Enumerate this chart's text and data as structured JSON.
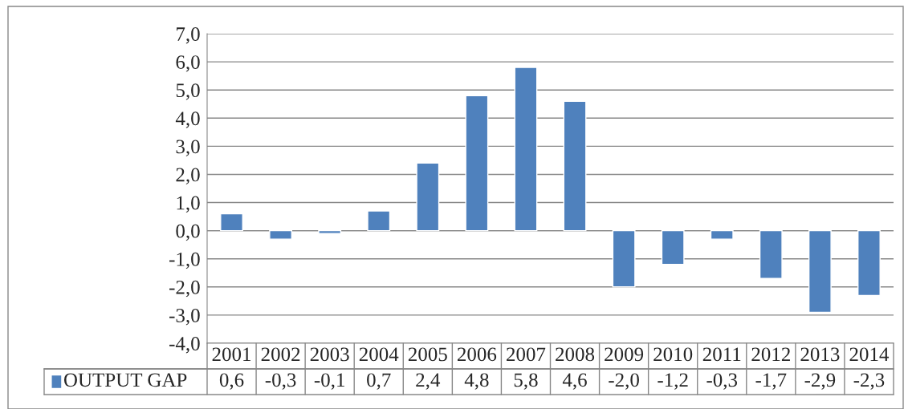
{
  "chart_data": {
    "type": "bar",
    "categories": [
      "2001",
      "2002",
      "2003",
      "2004",
      "2005",
      "2006",
      "2007",
      "2008",
      "2009",
      "2010",
      "2011",
      "2012",
      "2013",
      "2014"
    ],
    "series": [
      {
        "name": "OUTPUT GAP",
        "color": "#4f81bd",
        "values": [
          0.6,
          -0.3,
          -0.1,
          0.7,
          2.4,
          4.8,
          5.8,
          4.6,
          -2.0,
          -1.2,
          -0.3,
          -1.7,
          -2.9,
          -2.3
        ],
        "value_labels": [
          "0,6",
          "-0,3",
          "-0,1",
          "0,7",
          "2,4",
          "4,8",
          "5,8",
          "4,6",
          "-2,0",
          "-1,2",
          "-0,3",
          "-1,7",
          "-2,9",
          "-2,3"
        ]
      }
    ],
    "ylim": [
      -4,
      7
    ],
    "yticks": [
      {
        "value": -4,
        "label": "-4,0"
      },
      {
        "value": -3,
        "label": "-3,0"
      },
      {
        "value": -2,
        "label": "-2,0"
      },
      {
        "value": -1,
        "label": "-1,0"
      },
      {
        "value": 0,
        "label": "0,0"
      },
      {
        "value": 1,
        "label": "1,0"
      },
      {
        "value": 2,
        "label": "2,0"
      },
      {
        "value": 3,
        "label": "3,0"
      },
      {
        "value": 4,
        "label": "4,0"
      },
      {
        "value": 5,
        "label": "5,0"
      },
      {
        "value": 6,
        "label": "6,0"
      },
      {
        "value": 7,
        "label": "7,0"
      }
    ],
    "grid": "y",
    "legend": "bottom left"
  }
}
